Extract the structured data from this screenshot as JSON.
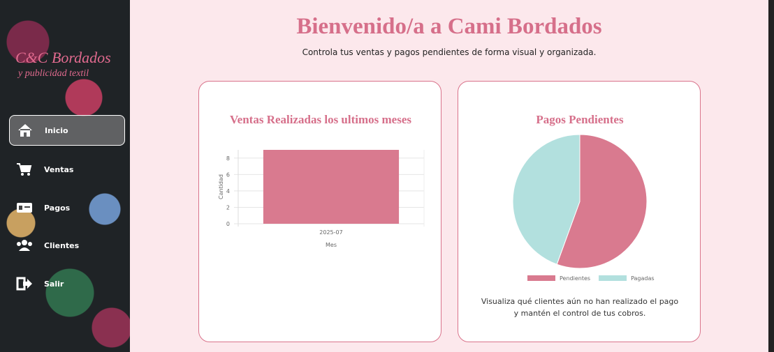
{
  "sidebar": {
    "logo": "C&C Bordados",
    "tagline": "y publicidad textil",
    "nav": [
      "Inicio",
      "Ventas",
      "Pagos",
      "Clientes",
      "Salir"
    ]
  },
  "header": {
    "title": "Bienvenido/a a Cami Bordados",
    "subtitle": "Controla tus ventas y pagos pendientes de forma visual y organizada."
  },
  "chart_data": [
    {
      "type": "bar",
      "title": "Ventas Realizadas los ultimos meses",
      "x_label": "Mes",
      "y_label": "Cantidad",
      "categories": [
        "2025-07"
      ],
      "values": [
        9
      ],
      "color": "#d97a8f",
      "ylim": [
        0,
        9
      ],
      "yticks": [
        0,
        2,
        4,
        6,
        8
      ],
      "grid": true
    },
    {
      "type": "pie",
      "title": "Pagos Pendientes",
      "categories": [
        "Pendientes",
        "Pagadas"
      ],
      "values": [
        5,
        4
      ],
      "colors": [
        "#d97a8f",
        "#b2e0de"
      ],
      "legend": "bottom",
      "caption": [
        "Visualiza qué clientes aún no han realizado el pago",
        "y mantén el control de tus cobros."
      ]
    }
  ]
}
